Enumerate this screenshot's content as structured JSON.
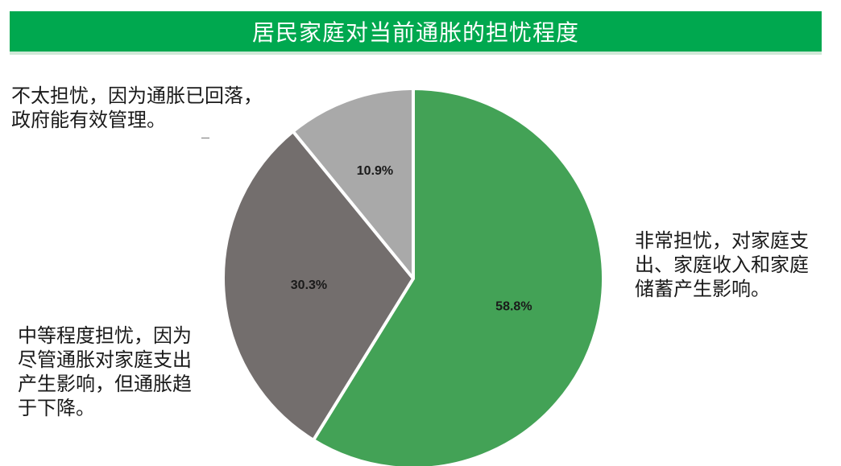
{
  "title": "居民家庭对当前通胀的担忧程度",
  "chart_data": {
    "type": "pie",
    "slices": [
      {
        "value": 58.8,
        "label": "58.8%",
        "color": "#43a256",
        "category_lines": [
          "非常担忧，对家庭支",
          "出、家庭收入和家庭",
          "储蓄产生影响。"
        ]
      },
      {
        "value": 30.3,
        "label": "30.3%",
        "color": "#736e6d",
        "category_lines": [
          "中等程度担忧，因为",
          "尽管通胀对家庭支出",
          "产生影响，但通胀趋",
          "于下降。"
        ]
      },
      {
        "value": 10.9,
        "label": "10.9%",
        "color": "#a9a9a9",
        "category_lines": [
          "不太担忧，因为通胀已回落，",
          "政府能有效管理。"
        ]
      }
    ],
    "start": "12 o'clock",
    "direction": "clockwise",
    "legend": "none"
  }
}
